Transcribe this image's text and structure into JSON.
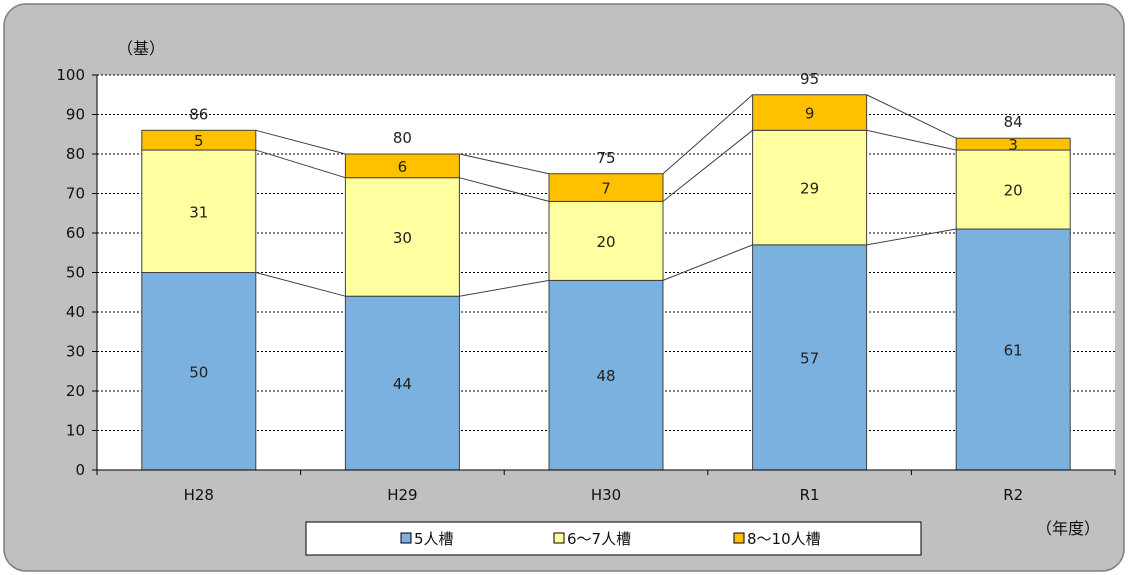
{
  "chart_data": {
    "type": "bar",
    "stacked": true,
    "categories": [
      "H28",
      "H29",
      "H30",
      "R1",
      "R2"
    ],
    "series": [
      {
        "name": "5人槽",
        "color": "#7BB1DE",
        "values": [
          50,
          44,
          48,
          57,
          61
        ]
      },
      {
        "name": "6～7人槽",
        "color": "#FFFFA0",
        "values": [
          31,
          30,
          20,
          29,
          20
        ]
      },
      {
        "name": "8～10人槽",
        "color": "#FFC000",
        "values": [
          5,
          6,
          7,
          9,
          3
        ]
      }
    ],
    "totals": [
      86,
      80,
      75,
      95,
      84
    ],
    "ylim": [
      0,
      100
    ],
    "yticks": [
      0,
      10,
      20,
      30,
      40,
      50,
      60,
      70,
      80,
      90,
      100
    ],
    "ylabel": "（基）",
    "xlabel": "（年度）",
    "grid": true,
    "legend": "bottom",
    "colors": {
      "background": "#C0C0C0",
      "plot": "#FFFFFF",
      "gridline": "#000000",
      "bar_border": "#404040",
      "connector": "#404040"
    }
  }
}
